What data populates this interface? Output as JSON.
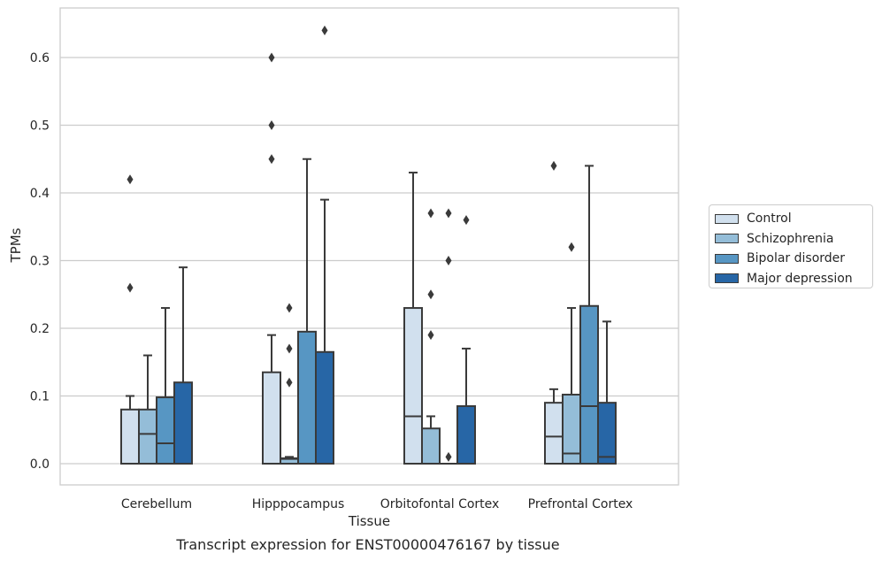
{
  "chart_data": {
    "type": "box",
    "title": "",
    "caption": "Transcript expression for ENST00000476167 by tissue",
    "xlabel": "Tissue",
    "ylabel": "TPMs",
    "ylim": [
      -0.03,
      0.675
    ],
    "yticks": [
      0.0,
      0.1,
      0.2,
      0.3,
      0.4,
      0.5,
      0.6
    ],
    "ytick_labels": [
      "0.0",
      "0.1",
      "0.2",
      "0.3",
      "0.4",
      "0.5",
      "0.6"
    ],
    "grid": "horizontal",
    "legend_position": "right",
    "categories": [
      "Cerebellum",
      "Hipppocampus",
      "Orbitofontal Cortex",
      "Prefrontal Cortex"
    ],
    "series": [
      {
        "name": "Control",
        "color": "#d1e0ee",
        "boxes": [
          {
            "min": 0,
            "q1": 0,
            "median": 0,
            "q3": 0.08,
            "max": 0.1,
            "outliers": [
              0.26,
              0.42
            ]
          },
          {
            "min": 0,
            "q1": 0,
            "median": 0,
            "q3": 0.135,
            "max": 0.19,
            "outliers": [
              0.45,
              0.5,
              0.6
            ]
          },
          {
            "min": 0,
            "q1": 0,
            "median": 0.07,
            "q3": 0.23,
            "max": 0.43,
            "outliers": []
          },
          {
            "min": 0,
            "q1": 0,
            "median": 0.04,
            "q3": 0.09,
            "max": 0.11,
            "outliers": [
              0.44
            ]
          }
        ]
      },
      {
        "name": "Schizophrenia",
        "color": "#94bdd8",
        "boxes": [
          {
            "min": 0,
            "q1": 0,
            "median": 0.044,
            "q3": 0.08,
            "max": 0.16,
            "outliers": []
          },
          {
            "min": 0,
            "q1": 0,
            "median": 0.007,
            "q3": 0.008,
            "max": 0.01,
            "outliers": [
              0.12,
              0.17,
              0.23
            ]
          },
          {
            "min": 0,
            "q1": 0,
            "median": 0,
            "q3": 0.052,
            "max": 0.07,
            "outliers": [
              0.19,
              0.25,
              0.37
            ]
          },
          {
            "min": 0,
            "q1": 0,
            "median": 0.015,
            "q3": 0.102,
            "max": 0.23,
            "outliers": [
              0.32
            ]
          }
        ]
      },
      {
        "name": "Bipolar disorder",
        "color": "#5796c3",
        "boxes": [
          {
            "min": 0,
            "q1": 0,
            "median": 0.03,
            "q3": 0.098,
            "max": 0.23,
            "outliers": []
          },
          {
            "min": 0,
            "q1": 0,
            "median": 0,
            "q3": 0.195,
            "max": 0.45,
            "outliers": []
          },
          {
            "min": 0,
            "q1": 0,
            "median": 0,
            "q3": 0,
            "max": 0,
            "outliers": [
              0.01,
              0.3,
              0.37
            ]
          },
          {
            "min": 0,
            "q1": 0,
            "median": 0.085,
            "q3": 0.233,
            "max": 0.44,
            "outliers": []
          }
        ]
      },
      {
        "name": "Major depression",
        "color": "#2766a6",
        "boxes": [
          {
            "min": 0,
            "q1": 0,
            "median": 0,
            "q3": 0.12,
            "max": 0.29,
            "outliers": []
          },
          {
            "min": 0,
            "q1": 0,
            "median": 0,
            "q3": 0.165,
            "max": 0.39,
            "outliers": [
              0.64
            ]
          },
          {
            "min": 0,
            "q1": 0,
            "median": 0,
            "q3": 0.085,
            "max": 0.17,
            "outliers": [
              0.36
            ]
          },
          {
            "min": 0,
            "q1": 0,
            "median": 0.01,
            "q3": 0.09,
            "max": 0.21,
            "outliers": []
          }
        ]
      }
    ]
  }
}
